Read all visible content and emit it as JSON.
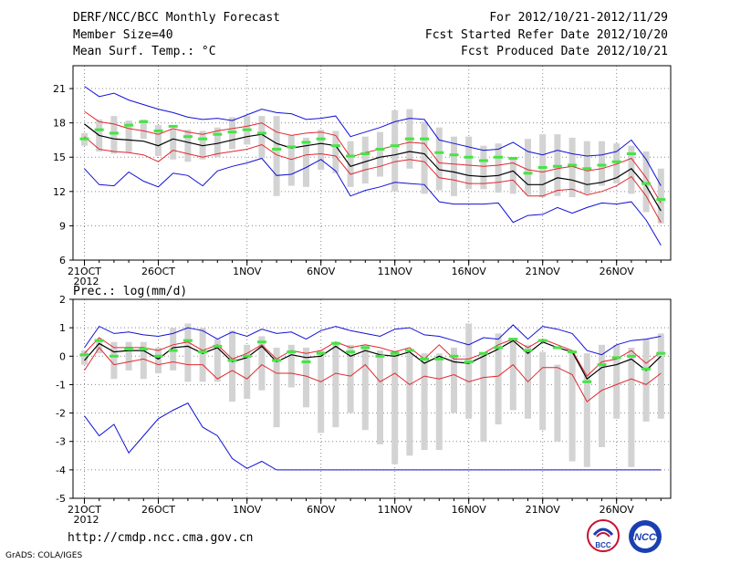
{
  "header": {
    "title": "DERF/NCC/BCC Monthly Forecast",
    "member_size": "Member Size=40",
    "variable": "Mean Surf. Temp.: °C",
    "period": "For 2012/10/21-2012/11/29",
    "fcst_started": "Fcst Started Refer Date 2012/10/20",
    "fcst_produced": "Fcst Produced Date 2012/10/21"
  },
  "footer": {
    "url": "http://cmdp.ncc.cma.gov.cn",
    "grads": "GrADS: COLA/IGES",
    "logo_bcc": "BCC",
    "logo_ncc": "NCC"
  },
  "colors": {
    "box": "#d3d3d3",
    "member": "#44e544",
    "mean": "#000000",
    "spread": "#e2272f",
    "extreme": "#1010d8",
    "grid": "#888888"
  },
  "chart_data": [
    {
      "type": "line",
      "title": "Mean Surf. Temp.: °C",
      "ylim": [
        6,
        23
      ],
      "yticks": [
        6,
        9,
        12,
        15,
        18,
        21
      ],
      "x_tick_labels": [
        "21OCT",
        "26OCT",
        "1NOV",
        "6NOV",
        "11NOV",
        "16NOV",
        "21NOV",
        "26NOV"
      ],
      "x_tick_days": [
        1,
        6,
        12,
        17,
        22,
        27,
        32,
        37
      ],
      "x_year_label": "2012",
      "n_days": 40,
      "series": [
        {
          "name": "max",
          "color": "extreme",
          "values": [
            21.2,
            20.3,
            20.6,
            20.0,
            19.6,
            19.2,
            18.9,
            18.5,
            18.3,
            18.4,
            18.2,
            18.7,
            19.2,
            18.9,
            18.8,
            18.3,
            18.4,
            18.6,
            16.8,
            17.2,
            17.6,
            18.1,
            18.4,
            18.3,
            16.5,
            16.2,
            15.9,
            15.6,
            15.7,
            16.3,
            15.5,
            15.2,
            15.6,
            15.3,
            15.1,
            15.2,
            15.5,
            16.5,
            14.8,
            12.5
          ]
        },
        {
          "name": "mean_plus_sd",
          "color": "spread",
          "values": [
            19.0,
            18.1,
            17.9,
            17.5,
            17.3,
            17.0,
            17.5,
            17.2,
            17.0,
            17.3,
            17.5,
            17.7,
            18.0,
            17.2,
            16.9,
            17.1,
            17.2,
            16.9,
            15.0,
            15.4,
            15.7,
            16.0,
            16.3,
            16.2,
            14.5,
            14.4,
            14.3,
            14.2,
            14.3,
            14.5,
            13.9,
            13.7,
            14.0,
            14.2,
            13.8,
            14.0,
            14.4,
            14.9,
            13.2,
            11.0
          ]
        },
        {
          "name": "ensemble_mean",
          "color": "mean",
          "values": [
            17.9,
            16.9,
            16.6,
            16.5,
            16.4,
            16.0,
            16.6,
            16.3,
            16.0,
            16.2,
            16.5,
            16.8,
            17.0,
            16.2,
            15.8,
            16.0,
            16.2,
            16.0,
            14.2,
            14.6,
            15.0,
            15.2,
            15.5,
            15.3,
            13.9,
            13.7,
            13.4,
            13.3,
            13.4,
            13.8,
            12.6,
            12.6,
            13.2,
            13.0,
            12.6,
            12.8,
            13.2,
            14.0,
            12.5,
            10.3
          ]
        },
        {
          "name": "mean_minus_sd",
          "color": "spread",
          "values": [
            16.8,
            15.7,
            15.5,
            15.4,
            15.2,
            14.6,
            15.6,
            15.3,
            15.0,
            15.3,
            15.5,
            15.7,
            16.1,
            15.2,
            14.8,
            15.2,
            15.3,
            15.1,
            13.5,
            13.9,
            14.2,
            14.6,
            14.8,
            14.6,
            13.2,
            13.0,
            12.7,
            12.7,
            12.8,
            13.0,
            11.6,
            11.6,
            12.1,
            12.2,
            11.7,
            12.0,
            12.5,
            13.3,
            11.6,
            9.3
          ]
        },
        {
          "name": "min",
          "color": "extreme",
          "values": [
            14.0,
            12.6,
            12.5,
            13.7,
            12.9,
            12.4,
            13.6,
            13.4,
            12.5,
            13.8,
            14.2,
            14.5,
            14.9,
            13.4,
            13.5,
            14.1,
            14.8,
            13.8,
            11.6,
            12.1,
            12.4,
            12.8,
            12.7,
            12.6,
            11.1,
            10.9,
            10.9,
            10.9,
            11.0,
            9.3,
            9.9,
            10.0,
            10.6,
            10.1,
            10.6,
            11.0,
            10.9,
            11.1,
            9.5,
            7.3
          ]
        }
      ],
      "member_marks": [
        16.6,
        17.4,
        17.1,
        17.8,
        18.1,
        17.3,
        17.7,
        16.8,
        16.6,
        17.0,
        17.2,
        17.4,
        17.1,
        15.7,
        15.9,
        16.3,
        16.6,
        16.0,
        15.1,
        15.3,
        15.7,
        16.0,
        16.6,
        16.6,
        15.4,
        15.2,
        15.0,
        14.7,
        15.0,
        14.9,
        13.6,
        14.1,
        14.2,
        14.3,
        14.0,
        14.3,
        14.6,
        15.3,
        12.7,
        11.3
      ],
      "boxes": [
        [
          16,
          17.1
        ],
        [
          15.5,
          18.3
        ],
        [
          15.3,
          18.6
        ],
        [
          15.4,
          18.2
        ],
        [
          16.6,
          18.3
        ],
        [
          15.1,
          17.8
        ],
        [
          14.8,
          17.5
        ],
        [
          14.6,
          17.4
        ],
        [
          14.8,
          17.3
        ],
        [
          15.0,
          17.6
        ],
        [
          15.7,
          18.5
        ],
        [
          16.1,
          18.6
        ],
        [
          14.9,
          18.6
        ],
        [
          11.6,
          18.6
        ],
        [
          12.5,
          16.9
        ],
        [
          12.4,
          16.7
        ],
        [
          13.9,
          17.4
        ],
        [
          13.6,
          17.3
        ],
        [
          12.4,
          16.4
        ],
        [
          12.7,
          16.8
        ],
        [
          13.3,
          17.2
        ],
        [
          12.0,
          19.1
        ],
        [
          14.0,
          19.2
        ],
        [
          11.8,
          18.1
        ],
        [
          12.1,
          17.6
        ],
        [
          11.6,
          16.8
        ],
        [
          12.2,
          16.8
        ],
        [
          12.2,
          16.0
        ],
        [
          11.9,
          16.2
        ],
        [
          11.8,
          14.9
        ],
        [
          11.7,
          16.6
        ],
        [
          11.5,
          17.0
        ],
        [
          11.6,
          17.0
        ],
        [
          11.5,
          16.7
        ],
        [
          11.8,
          16.4
        ],
        [
          12.5,
          16.4
        ],
        [
          12.7,
          16.2
        ],
        [
          11.8,
          16.0
        ],
        [
          10.2,
          15.5
        ],
        [
          9.2,
          14.0
        ]
      ]
    },
    {
      "type": "line",
      "title": "Prec.: log(mm/d)",
      "ylim": [
        -5,
        2
      ],
      "yticks": [
        -5,
        -4,
        -3,
        -2,
        -1,
        0,
        1,
        2
      ],
      "x_tick_labels": [
        "21OCT",
        "26OCT",
        "1NOV",
        "6NOV",
        "11NOV",
        "16NOV",
        "21NOV",
        "26NOV"
      ],
      "x_tick_days": [
        1,
        6,
        12,
        17,
        22,
        27,
        32,
        37
      ],
      "x_year_label": "2012",
      "n_days": 40,
      "series": [
        {
          "name": "max",
          "color": "extreme",
          "values": [
            0.3,
            1.05,
            0.8,
            0.85,
            0.75,
            0.7,
            0.8,
            1.0,
            0.9,
            0.6,
            0.85,
            0.7,
            0.95,
            0.8,
            0.85,
            0.6,
            0.9,
            1.05,
            0.9,
            0.8,
            0.7,
            0.95,
            1.0,
            0.75,
            0.7,
            0.55,
            0.4,
            0.65,
            0.6,
            1.1,
            0.6,
            1.05,
            0.95,
            0.8,
            0.2,
            0.05,
            0.4,
            0.55,
            0.6,
            0.7
          ]
        },
        {
          "name": "mean_plus_sd",
          "color": "spread",
          "values": [
            0.1,
            0.65,
            0.3,
            0.3,
            0.3,
            0.2,
            0.4,
            0.5,
            0.2,
            0.4,
            -0.1,
            0.1,
            0.4,
            -0.1,
            0.2,
            0.1,
            0.2,
            0.5,
            0.3,
            0.4,
            0.3,
            0.15,
            0.3,
            -0.1,
            0.4,
            -0.1,
            -0.1,
            0.1,
            0.4,
            0.6,
            0.3,
            0.6,
            0.4,
            0.2,
            -0.7,
            -0.2,
            -0.1,
            0.2,
            -0.25,
            0.15
          ]
        },
        {
          "name": "ensemble_mean",
          "color": "mean",
          "values": [
            -0.15,
            0.45,
            0.15,
            0.2,
            0.2,
            -0.1,
            0.3,
            0.35,
            0.1,
            0.3,
            -0.2,
            -0.05,
            0.35,
            -0.2,
            0.05,
            -0.05,
            0.0,
            0.35,
            0.0,
            0.2,
            0.05,
            0.0,
            0.15,
            -0.25,
            0.0,
            -0.2,
            -0.25,
            0.0,
            0.25,
            0.55,
            0.1,
            0.5,
            0.3,
            0.15,
            -0.8,
            -0.4,
            -0.3,
            -0.1,
            -0.5,
            0.0
          ]
        },
        {
          "name": "mean_minus_sd",
          "color": "spread",
          "values": [
            -0.5,
            0.3,
            -0.3,
            -0.2,
            -0.1,
            -0.3,
            -0.2,
            -0.3,
            -0.3,
            -0.8,
            -0.5,
            -0.8,
            -0.3,
            -0.6,
            -0.6,
            -0.7,
            -0.9,
            -0.6,
            -0.7,
            -0.3,
            -0.9,
            -0.6,
            -1.0,
            -0.7,
            -0.8,
            -0.65,
            -0.9,
            -0.75,
            -0.7,
            -0.3,
            -0.9,
            -0.4,
            -0.4,
            -0.65,
            -1.6,
            -1.2,
            -1.0,
            -0.8,
            -1.0,
            -0.6
          ]
        },
        {
          "name": "min",
          "color": "extreme",
          "values": [
            -2.1,
            -2.8,
            -2.4,
            -3.4,
            -2.8,
            -2.2,
            -1.9,
            -1.65,
            -2.5,
            -2.8,
            -3.6,
            -3.95,
            -3.7,
            -4.0,
            -4.0,
            -4.0,
            -4.0,
            -4.0,
            -4.0,
            -4.0,
            -4.0,
            -4.0,
            -4.0,
            -4.0,
            -4.0,
            -4.0,
            -4.0,
            -4.0,
            -4.0,
            -4.0,
            -4.0,
            -4.0,
            -4.0,
            -4.0,
            -4.0,
            -4.0,
            -4.0,
            -4.0,
            -4.0,
            -4.0
          ]
        }
      ],
      "member_marks": [
        0.05,
        0.55,
        0.0,
        0.25,
        0.25,
        0.0,
        0.2,
        0.55,
        0.15,
        0.35,
        -0.15,
        0.0,
        0.5,
        -0.15,
        0.15,
        -0.2,
        0.1,
        0.45,
        0.15,
        0.3,
        0.0,
        0.1,
        0.2,
        -0.1,
        -0.1,
        0.0,
        -0.2,
        0.1,
        0.3,
        0.6,
        0.2,
        0.55,
        0.3,
        0.15,
        -0.9,
        -0.3,
        -0.05,
        0.0,
        -0.45,
        0.1
      ],
      "boxes": [
        [
          -0.3,
          0.2
        ],
        [
          0.1,
          0.6
        ],
        [
          -0.8,
          0.5
        ],
        [
          -0.5,
          0.5
        ],
        [
          -0.8,
          0.5
        ],
        [
          -0.6,
          0.3
        ],
        [
          -0.5,
          1.0
        ],
        [
          -0.9,
          1.15
        ],
        [
          -0.9,
          1.0
        ],
        [
          -0.9,
          0.6
        ],
        [
          -1.6,
          0.9
        ],
        [
          -1.5,
          0.4
        ],
        [
          -1.2,
          0.7
        ],
        [
          -2.5,
          0.3
        ],
        [
          -1.1,
          0.4
        ],
        [
          -1.8,
          0.3
        ],
        [
          -2.7,
          0.2
        ],
        [
          -2.5,
          0.5
        ],
        [
          -2.0,
          0.4
        ],
        [
          -2.6,
          0.4
        ],
        [
          -3.1,
          0.2
        ],
        [
          -3.8,
          0.2
        ],
        [
          -3.5,
          0.1
        ],
        [
          -3.3,
          0.1
        ],
        [
          -3.3,
          0.1
        ],
        [
          -2.0,
          0.3
        ],
        [
          -2.2,
          1.15
        ],
        [
          -3.0,
          0.1
        ],
        [
          -2.4,
          0.8
        ],
        [
          -1.9,
          0.6
        ],
        [
          -2.2,
          0.4
        ],
        [
          -2.6,
          0.15
        ],
        [
          -3.0,
          -0.3
        ],
        [
          -3.7,
          0.2
        ],
        [
          -3.9,
          0.1
        ],
        [
          -3.2,
          0.4
        ],
        [
          -2.2,
          0.4
        ],
        [
          -3.9,
          0.3
        ],
        [
          -2.3,
          0.6
        ],
        [
          -2.2,
          0.8
        ]
      ]
    }
  ]
}
